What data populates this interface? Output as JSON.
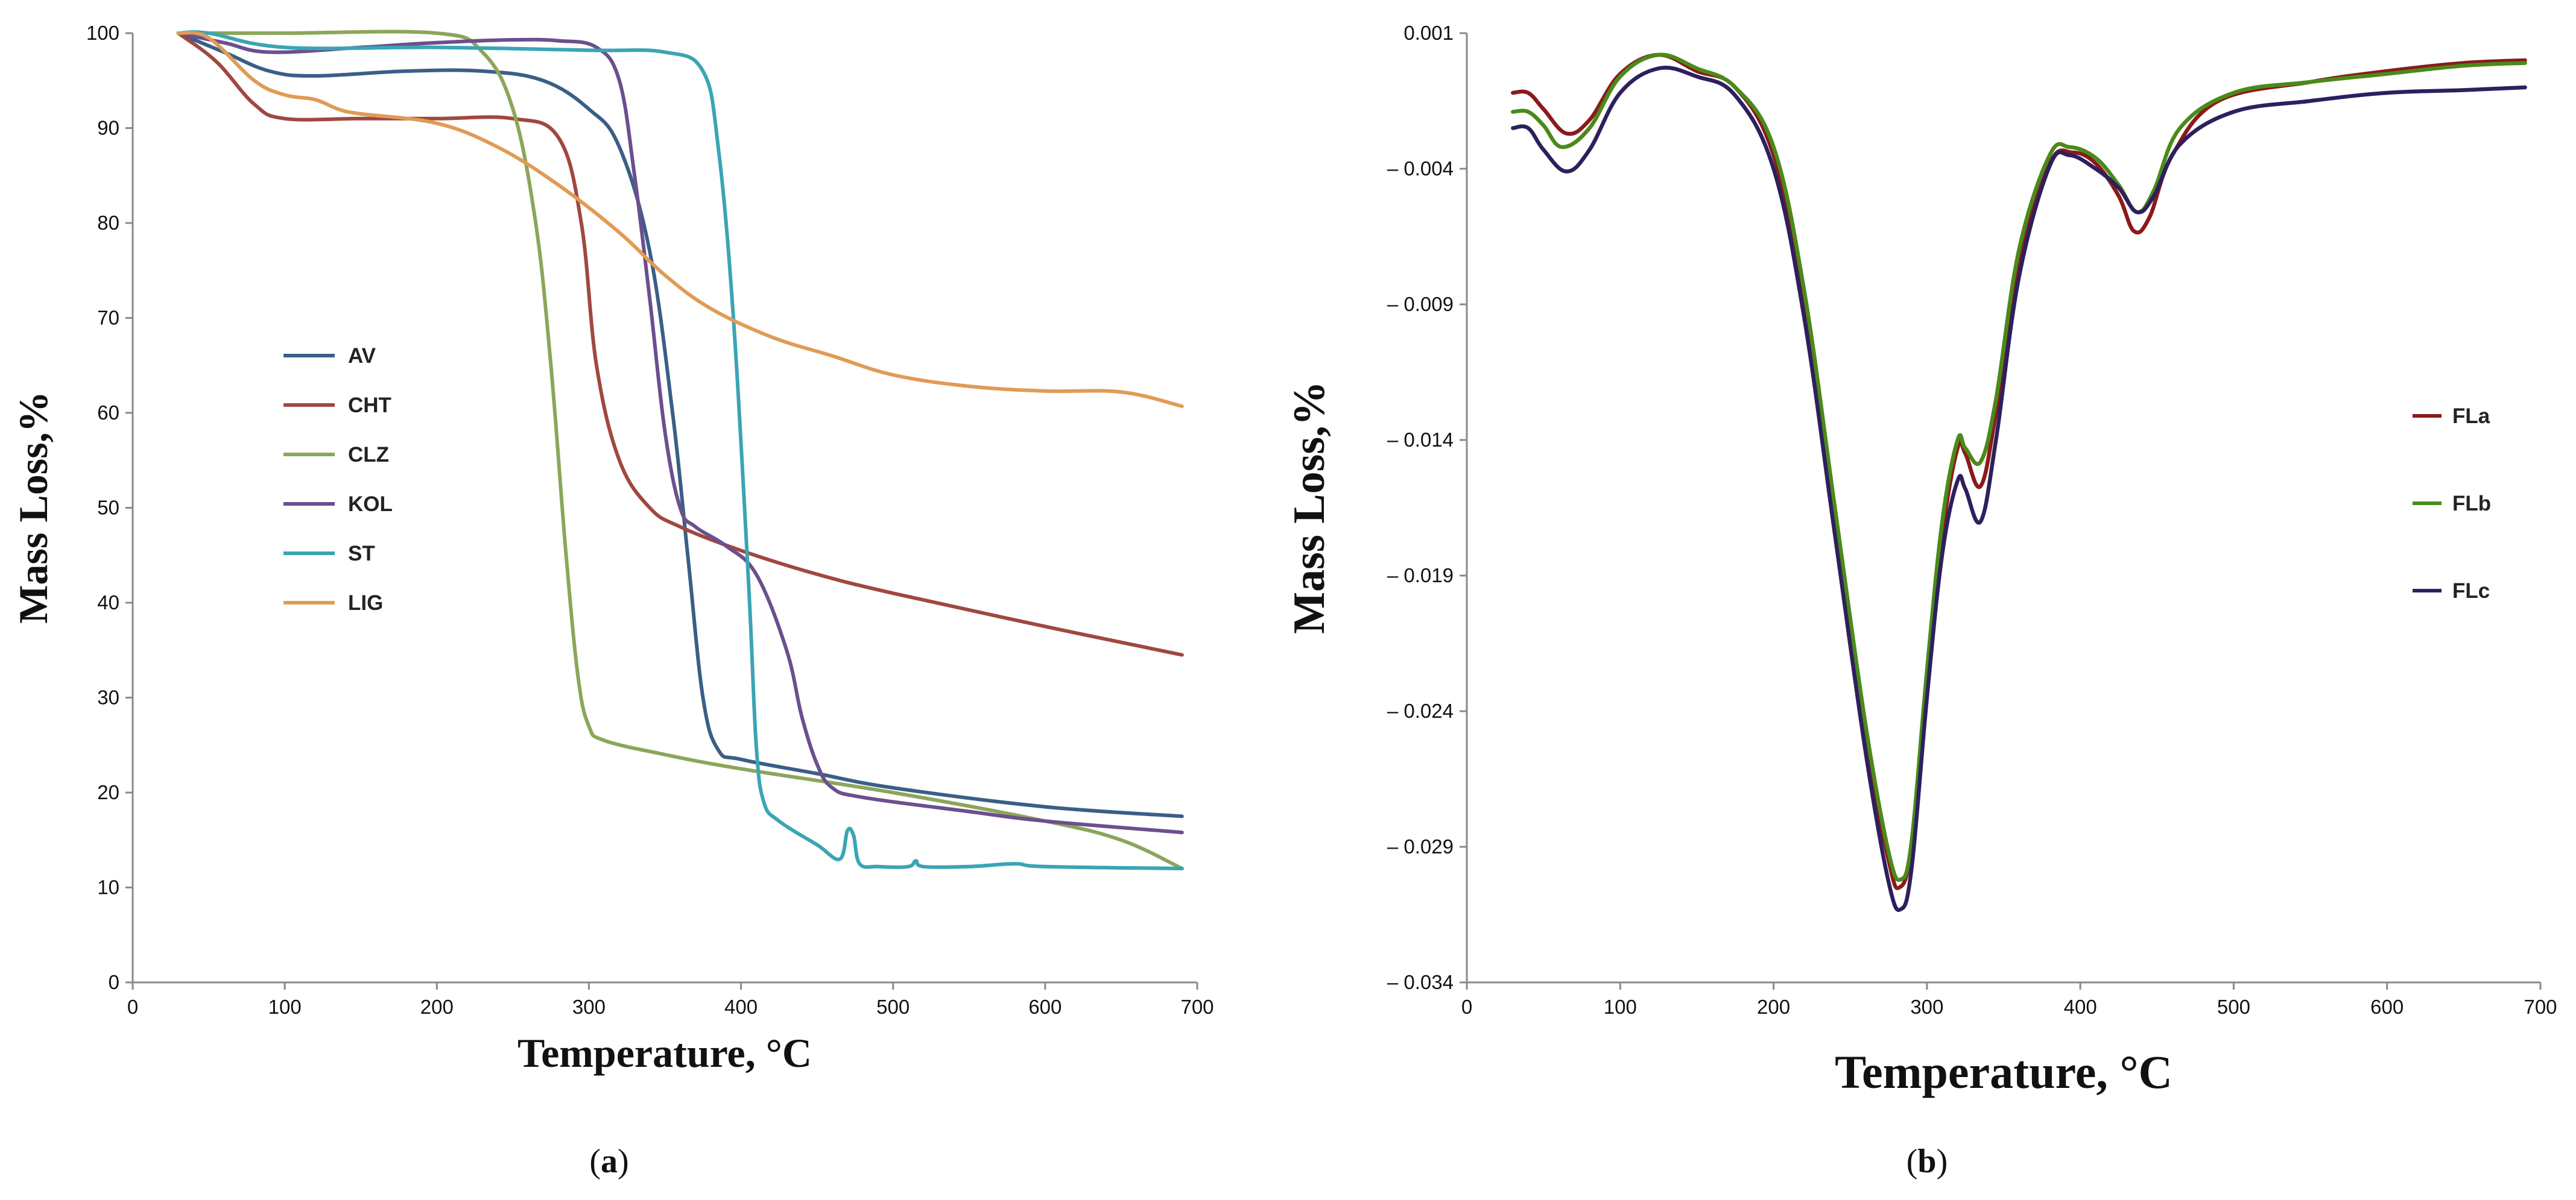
{
  "chart_data": [
    {
      "id": "a",
      "type": "line",
      "caption": {
        "open": "(",
        "letter": "a",
        "close": ")"
      },
      "title": "",
      "xlabel": "Temperature, °C",
      "ylabel": "Mass Loss,%",
      "xlim": [
        0,
        700
      ],
      "ylim": [
        0,
        100
      ],
      "xticks": [
        "0",
        "100",
        "200",
        "300",
        "400",
        "500",
        "600",
        "700"
      ],
      "yticks": [
        "0",
        "10",
        "20",
        "30",
        "40",
        "50",
        "60",
        "70",
        "80",
        "90",
        "100"
      ],
      "grid": false,
      "legend_position": "center-left",
      "series": [
        {
          "name": "AV",
          "color": "#3a5f86",
          "points": [
            [
              30,
              100
            ],
            [
              60,
              98
            ],
            [
              90,
              96
            ],
            [
              120,
              95.5
            ],
            [
              180,
              96
            ],
            [
              230,
              96
            ],
            [
              270,
              95
            ],
            [
              300,
              92
            ],
            [
              320,
              88
            ],
            [
              340,
              77
            ],
            [
              355,
              60
            ],
            [
              365,
              45
            ],
            [
              375,
              30
            ],
            [
              385,
              24.5
            ],
            [
              400,
              23.5
            ],
            [
              450,
              22
            ],
            [
              500,
              20.5
            ],
            [
              600,
              18.5
            ],
            [
              690,
              17.5
            ]
          ]
        },
        {
          "name": "CHT",
          "color": "#a0483f",
          "points": [
            [
              30,
              100
            ],
            [
              55,
              97
            ],
            [
              80,
              92.5
            ],
            [
              100,
              91
            ],
            [
              150,
              91
            ],
            [
              200,
              91
            ],
            [
              250,
              91
            ],
            [
              280,
              89
            ],
            [
              295,
              80
            ],
            [
              305,
              65
            ],
            [
              320,
              55
            ],
            [
              340,
              50
            ],
            [
              360,
              48
            ],
            [
              400,
              45.5
            ],
            [
              450,
              43
            ],
            [
              500,
              41
            ],
            [
              600,
              37.5
            ],
            [
              690,
              34.5
            ]
          ]
        },
        {
          "name": "CLZ",
          "color": "#8ba65a",
          "points": [
            [
              30,
              100
            ],
            [
              100,
              100
            ],
            [
              200,
              100
            ],
            [
              230,
              98
            ],
            [
              250,
              92
            ],
            [
              265,
              80
            ],
            [
              275,
              65
            ],
            [
              285,
              45
            ],
            [
              293,
              32
            ],
            [
              300,
              27
            ],
            [
              310,
              25.5
            ],
            [
              350,
              24
            ],
            [
              400,
              22.5
            ],
            [
              500,
              20
            ],
            [
              600,
              17
            ],
            [
              650,
              15
            ],
            [
              690,
              12
            ]
          ]
        },
        {
          "name": "KOL",
          "color": "#6b4f8e",
          "points": [
            [
              30,
              100
            ],
            [
              60,
              99
            ],
            [
              90,
              98
            ],
            [
              150,
              98.5
            ],
            [
              200,
              99
            ],
            [
              250,
              99.3
            ],
            [
              280,
              99.2
            ],
            [
              305,
              98.5
            ],
            [
              320,
              95
            ],
            [
              330,
              85
            ],
            [
              340,
              72
            ],
            [
              350,
              58
            ],
            [
              360,
              50
            ],
            [
              370,
              48
            ],
            [
              390,
              46
            ],
            [
              410,
              43
            ],
            [
              430,
              35
            ],
            [
              440,
              28
            ],
            [
              450,
              23
            ],
            [
              460,
              20.5
            ],
            [
              480,
              19.5
            ],
            [
              550,
              18
            ],
            [
              600,
              17
            ],
            [
              690,
              15.8
            ]
          ]
        },
        {
          "name": "ST",
          "color": "#3aa5b4",
          "points": [
            [
              30,
              100
            ],
            [
              50,
              100
            ],
            [
              100,
              98.5
            ],
            [
              200,
              98.5
            ],
            [
              300,
              98.2
            ],
            [
              350,
              98
            ],
            [
              375,
              96
            ],
            [
              385,
              88
            ],
            [
              395,
              70
            ],
            [
              405,
              42
            ],
            [
              410,
              25
            ],
            [
              415,
              19
            ],
            [
              425,
              17
            ],
            [
              450,
              14.5
            ],
            [
              465,
              13
            ],
            [
              470,
              16
            ],
            [
              474,
              15.5
            ],
            [
              478,
              12.5
            ],
            [
              490,
              12.2
            ],
            [
              510,
              12.2
            ],
            [
              515,
              12.8
            ],
            [
              520,
              12.2
            ],
            [
              550,
              12.2
            ],
            [
              580,
              12.5
            ],
            [
              600,
              12.2
            ],
            [
              690,
              12
            ]
          ]
        },
        {
          "name": "LIG",
          "color": "#e09b55",
          "points": [
            [
              30,
              100
            ],
            [
              50,
              99.5
            ],
            [
              80,
              95
            ],
            [
              100,
              93.5
            ],
            [
              120,
              93
            ],
            [
              135,
              92
            ],
            [
              150,
              91.5
            ],
            [
              200,
              90.5
            ],
            [
              240,
              88
            ],
            [
              280,
              84
            ],
            [
              320,
              79
            ],
            [
              350,
              74.5
            ],
            [
              380,
              71
            ],
            [
              420,
              68
            ],
            [
              460,
              66
            ],
            [
              500,
              64
            ],
            [
              550,
              62.8
            ],
            [
              600,
              62.3
            ],
            [
              650,
              62.2
            ],
            [
              690,
              60.7
            ]
          ]
        }
      ]
    },
    {
      "id": "b",
      "type": "line",
      "caption": {
        "open": "(",
        "letter": "b",
        "close": ")"
      },
      "title": "",
      "xlabel": "Temperature, °C",
      "ylabel": "Mass Loss,%",
      "xlim": [
        0,
        700
      ],
      "ylim": [
        -0.034,
        0.001
      ],
      "xticks": [
        "0",
        "100",
        "200",
        "300",
        "400",
        "500",
        "600",
        "700"
      ],
      "yticks": [
        "0.001",
        "– 0.004",
        "– 0.009",
        "– 0.014",
        "– 0.019",
        "– 0.024",
        "– 0.029",
        "– 0.034"
      ],
      "ytick_values": [
        0.001,
        -0.004,
        -0.009,
        -0.014,
        -0.019,
        -0.024,
        -0.029,
        -0.034
      ],
      "grid": false,
      "legend_position": "right",
      "series": [
        {
          "name": "FLa",
          "color": "#8b1a1a",
          "points": [
            [
              30,
              -0.0012
            ],
            [
              40,
              -0.0012
            ],
            [
              50,
              -0.0018
            ],
            [
              65,
              -0.0027
            ],
            [
              80,
              -0.0022
            ],
            [
              100,
              -0.0005
            ],
            [
              125,
              0.0002
            ],
            [
              150,
              -0.0004
            ],
            [
              175,
              -0.001
            ],
            [
              200,
              -0.0035
            ],
            [
              220,
              -0.009
            ],
            [
              240,
              -0.017
            ],
            [
              260,
              -0.025
            ],
            [
              275,
              -0.0295
            ],
            [
              282,
              -0.0305
            ],
            [
              290,
              -0.029
            ],
            [
              300,
              -0.023
            ],
            [
              310,
              -0.0175
            ],
            [
              320,
              -0.0143
            ],
            [
              325,
              -0.0145
            ],
            [
              335,
              -0.0157
            ],
            [
              345,
              -0.013
            ],
            [
              360,
              -0.0075
            ],
            [
              380,
              -0.0038
            ],
            [
              395,
              -0.0034
            ],
            [
              410,
              -0.0038
            ],
            [
              425,
              -0.005
            ],
            [
              435,
              -0.0063
            ],
            [
              445,
              -0.0058
            ],
            [
              460,
              -0.0035
            ],
            [
              490,
              -0.0015
            ],
            [
              550,
              -0.0008
            ],
            [
              600,
              -0.0004
            ],
            [
              650,
              -0.0001
            ],
            [
              690,
              0
            ]
          ]
        },
        {
          "name": "FLb",
          "color": "#4a8a1a",
          "points": [
            [
              30,
              -0.0019
            ],
            [
              40,
              -0.0019
            ],
            [
              50,
              -0.0024
            ],
            [
              62,
              -0.0032
            ],
            [
              80,
              -0.0025
            ],
            [
              100,
              -0.0006
            ],
            [
              125,
              0.0002
            ],
            [
              150,
              -0.0003
            ],
            [
              175,
              -0.001
            ],
            [
              200,
              -0.0032
            ],
            [
              220,
              -0.0085
            ],
            [
              240,
              -0.0165
            ],
            [
              260,
              -0.0245
            ],
            [
              275,
              -0.0292
            ],
            [
              283,
              -0.0302
            ],
            [
              290,
              -0.0288
            ],
            [
              300,
              -0.0225
            ],
            [
              310,
              -0.017
            ],
            [
              320,
              -0.014
            ],
            [
              325,
              -0.0143
            ],
            [
              335,
              -0.0148
            ],
            [
              345,
              -0.0125
            ],
            [
              360,
              -0.007
            ],
            [
              380,
              -0.0035
            ],
            [
              393,
              -0.0032
            ],
            [
              410,
              -0.0036
            ],
            [
              425,
              -0.0046
            ],
            [
              437,
              -0.0056
            ],
            [
              448,
              -0.0048
            ],
            [
              465,
              -0.0025
            ],
            [
              500,
              -0.0012
            ],
            [
              550,
              -0.0008
            ],
            [
              600,
              -0.0005
            ],
            [
              650,
              -0.0002
            ],
            [
              690,
              -0.0001
            ]
          ]
        },
        {
          "name": "FLc",
          "color": "#2e1f5e",
          "points": [
            [
              30,
              -0.0025
            ],
            [
              40,
              -0.0025
            ],
            [
              50,
              -0.0033
            ],
            [
              65,
              -0.0041
            ],
            [
              80,
              -0.0033
            ],
            [
              100,
              -0.0012
            ],
            [
              125,
              -0.0003
            ],
            [
              150,
              -0.0006
            ],
            [
              175,
              -0.0013
            ],
            [
              200,
              -0.004
            ],
            [
              220,
              -0.0095
            ],
            [
              240,
              -0.0175
            ],
            [
              260,
              -0.0255
            ],
            [
              275,
              -0.0303
            ],
            [
              283,
              -0.0313
            ],
            [
              290,
              -0.0298
            ],
            [
              300,
              -0.0235
            ],
            [
              310,
              -0.0182
            ],
            [
              320,
              -0.0155
            ],
            [
              325,
              -0.0158
            ],
            [
              335,
              -0.017
            ],
            [
              345,
              -0.014
            ],
            [
              360,
              -0.008
            ],
            [
              380,
              -0.0039
            ],
            [
              393,
              -0.0035
            ],
            [
              410,
              -0.004
            ],
            [
              425,
              -0.0047
            ],
            [
              437,
              -0.0056
            ],
            [
              448,
              -0.005
            ],
            [
              465,
              -0.0031
            ],
            [
              500,
              -0.0019
            ],
            [
              550,
              -0.0015
            ],
            [
              600,
              -0.0012
            ],
            [
              650,
              -0.0011
            ],
            [
              690,
              -0.001
            ]
          ]
        }
      ]
    }
  ]
}
